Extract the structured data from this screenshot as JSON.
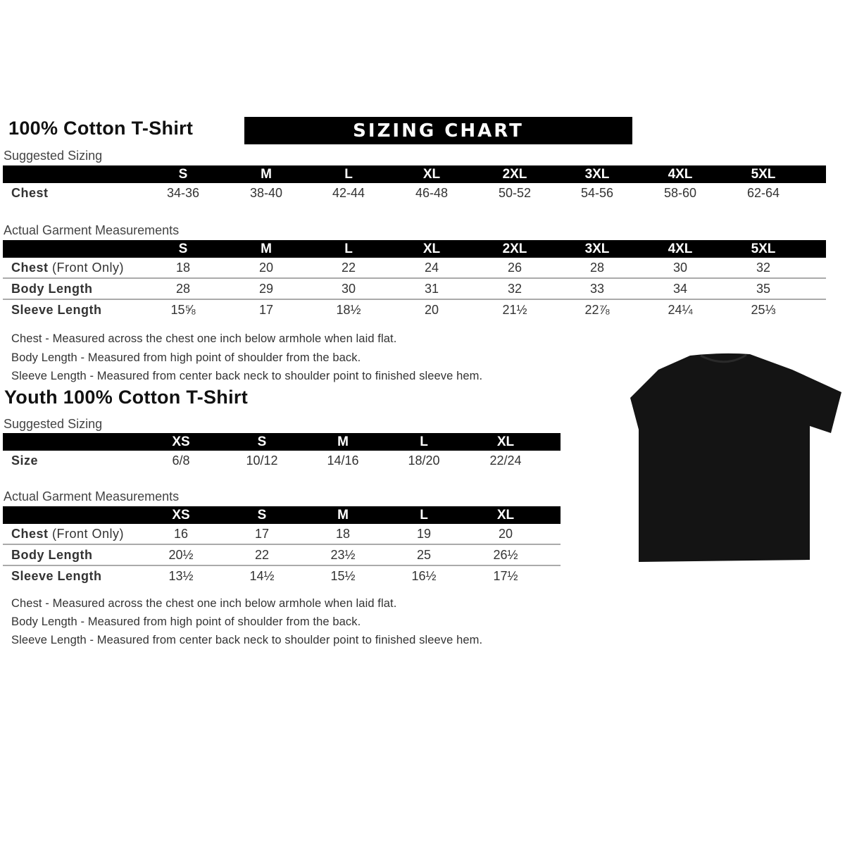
{
  "adult": {
    "title": "100% Cotton T-Shirt",
    "banner": "SIZING CHART",
    "suggested_label": "Suggested Sizing",
    "suggested": {
      "sizes": [
        "S",
        "M",
        "L",
        "XL",
        "2XL",
        "3XL",
        "4XL",
        "5XL"
      ],
      "rows": [
        {
          "label": "Chest",
          "values": [
            "34-36",
            "38-40",
            "42-44",
            "46-48",
            "50-52",
            "54-56",
            "58-60",
            "62-64"
          ]
        }
      ]
    },
    "actual_label": "Actual Garment Measurements",
    "actual": {
      "sizes": [
        "S",
        "M",
        "L",
        "XL",
        "2XL",
        "3XL",
        "4XL",
        "5XL"
      ],
      "rows": [
        {
          "label": "Chest",
          "sublabel": "(Front Only)",
          "values": [
            "18",
            "20",
            "22",
            "24",
            "26",
            "28",
            "30",
            "32"
          ]
        },
        {
          "label": "Body Length",
          "values": [
            "28",
            "29",
            "30",
            "31",
            "32",
            "33",
            "34",
            "35"
          ]
        },
        {
          "label": "Sleeve Length",
          "values": [
            "15⅝",
            "17",
            "18½",
            "20",
            "21½",
            "22⅞",
            "24¼",
            "25⅓"
          ]
        }
      ]
    },
    "notes": [
      "Chest - Measured across the chest one inch below armhole when laid flat.",
      "Body Length - Measured from high point of shoulder from the back.",
      "Sleeve Length - Measured from center back neck to shoulder point to finished sleeve hem."
    ]
  },
  "youth": {
    "title": "Youth 100% Cotton T-Shirt",
    "suggested_label": "Suggested Sizing",
    "suggested": {
      "sizes": [
        "XS",
        "S",
        "M",
        "L",
        "XL"
      ],
      "rows": [
        {
          "label": "Size",
          "values": [
            "6/8",
            "10/12",
            "14/16",
            "18/20",
            "22/24"
          ]
        }
      ]
    },
    "actual_label": "Actual Garment Measurements",
    "actual": {
      "sizes": [
        "XS",
        "S",
        "M",
        "L",
        "XL"
      ],
      "rows": [
        {
          "label": "Chest",
          "sublabel": "(Front Only)",
          "values": [
            "16",
            "17",
            "18",
            "19",
            "20"
          ]
        },
        {
          "label": "Body Length",
          "values": [
            "20½",
            "22",
            "23½",
            "25",
            "26½"
          ]
        },
        {
          "label": "Sleeve Length",
          "values": [
            "13½",
            "14½",
            "15½",
            "16½",
            "17½"
          ]
        }
      ]
    },
    "notes": [
      "Chest - Measured across the chest one inch below armhole when laid flat.",
      "Body Length - Measured from high point of shoulder from the back.",
      "Sleeve Length - Measured from center back neck to shoulder point to finished sleeve hem."
    ]
  },
  "colors": {
    "header_bg": "#000000",
    "shirt": "#141414",
    "row_divider": "#aaaaaa"
  }
}
